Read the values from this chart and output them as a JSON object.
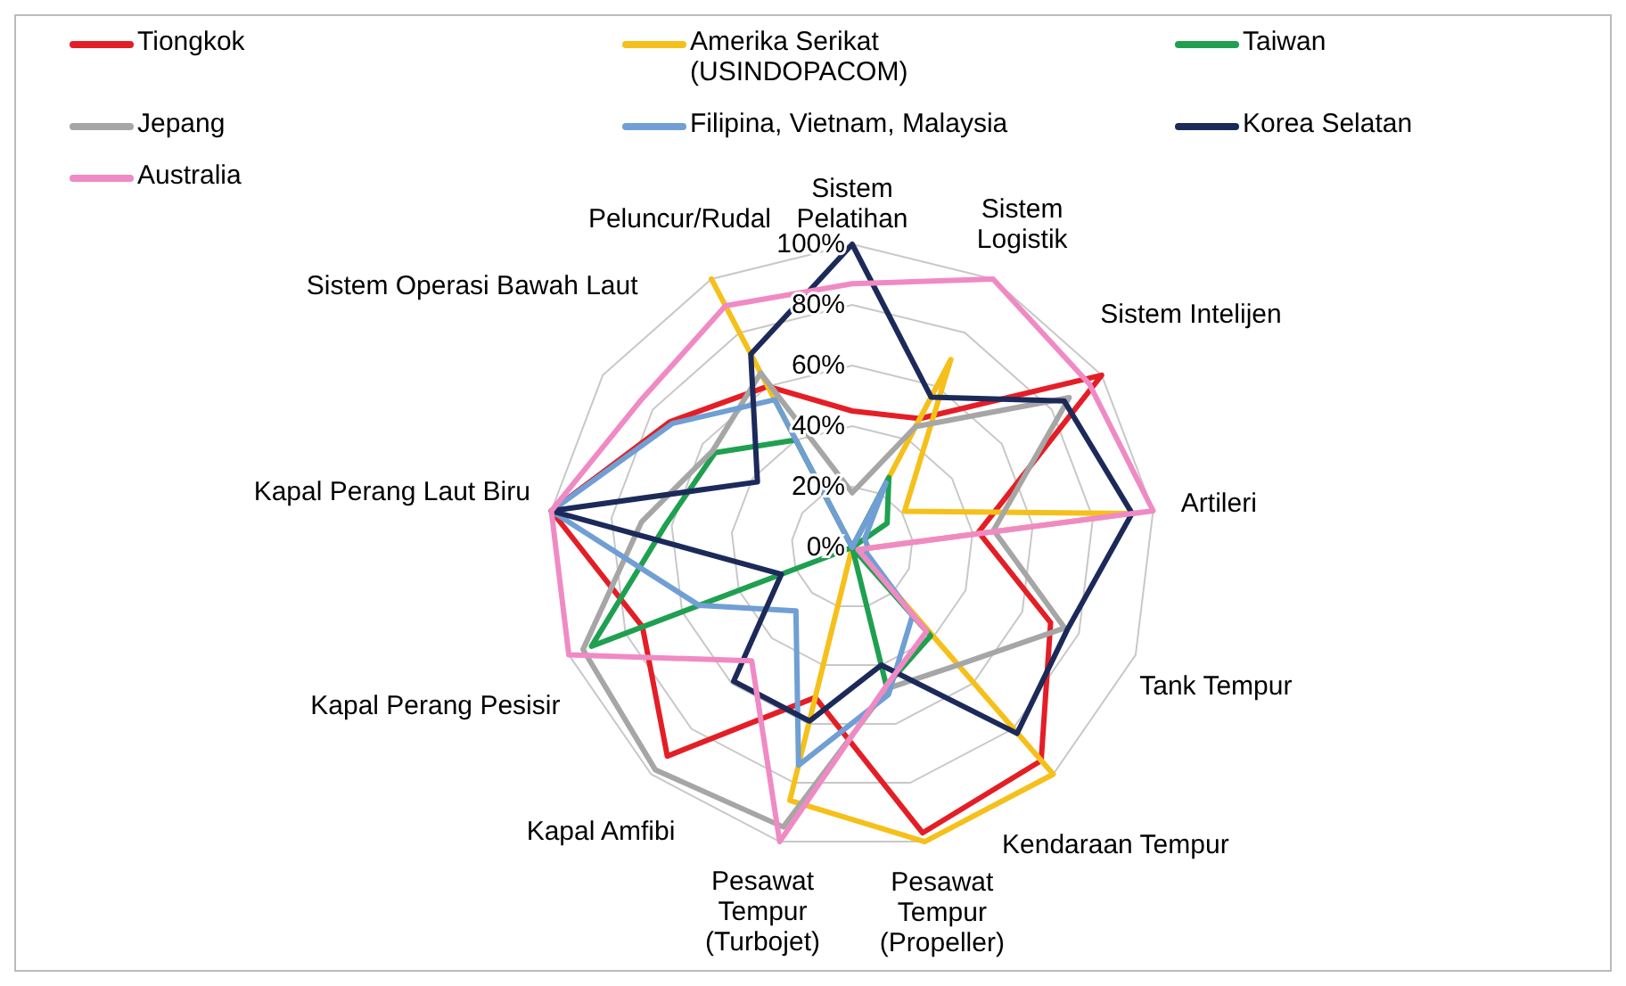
{
  "chart_data": {
    "type": "radar",
    "categories": [
      "Sistem Pelatihan",
      "Sistem Logistik",
      "Sistem Intelijen",
      "Artileri",
      "Tank Tempur",
      "Kendaraan Tempur",
      "Pesawat Tempur (Propeller)",
      "Pesawat Tempur (Turbojet)",
      "Kapal Amfibi",
      "Kapal Perang Pesisir",
      "Kapal Perang Laut Biru",
      "Sistem Operasi Bawah Laut",
      "Peluncur/Rudal"
    ],
    "series": [
      {
        "name": "Tiongkok",
        "color": "#e41e26",
        "values": [
          45,
          48,
          100,
          42,
          70,
          94,
          97,
          51,
          92,
          74,
          100,
          73,
          60
        ]
      },
      {
        "name": "Amerika Serikat (USINDOPACOM)",
        "color": "#f5c01a",
        "values": [
          0,
          70,
          21,
          93,
          2,
          100,
          100,
          86,
          0,
          0,
          0,
          0,
          100
        ]
      },
      {
        "name": "Taiwan",
        "color": "#1fa050",
        "values": [
          0,
          26,
          14,
          0,
          0,
          39,
          47,
          0,
          0,
          92,
          62,
          55,
          40
        ]
      },
      {
        "name": "Jepang",
        "color": "#a6a6a6",
        "values": [
          18,
          45,
          87,
          47,
          75,
          52,
          48,
          95,
          98,
          95,
          70,
          56,
          65
        ]
      },
      {
        "name": "Filipina, Vietnam, Malaysia",
        "color": "#6f9fd4",
        "values": [
          0,
          24,
          5,
          5,
          5,
          30,
          50,
          74,
          28,
          54,
          100,
          72,
          55
        ]
      },
      {
        "name": "Korea Selatan",
        "color": "#1c2a5a",
        "values": [
          100,
          56,
          85,
          93,
          76,
          82,
          40,
          59,
          59,
          25,
          100,
          38,
          72
        ]
      },
      {
        "name": "Australia",
        "color": "#f08ac4",
        "values": [
          87,
          100,
          95,
          100,
          2,
          37,
          47,
          100,
          50,
          100,
          100,
          85,
          90
        ]
      }
    ],
    "ylim": [
      0,
      100
    ],
    "yticks": [
      {
        "value": 0,
        "label": "0%"
      },
      {
        "value": 20,
        "label": "20%"
      },
      {
        "value": 40,
        "label": "40%"
      },
      {
        "value": 60,
        "label": "60%"
      },
      {
        "value": 80,
        "label": "80%"
      },
      {
        "value": 100,
        "label": "100%"
      }
    ],
    "grid": true,
    "legend": "top",
    "marker": "none"
  }
}
